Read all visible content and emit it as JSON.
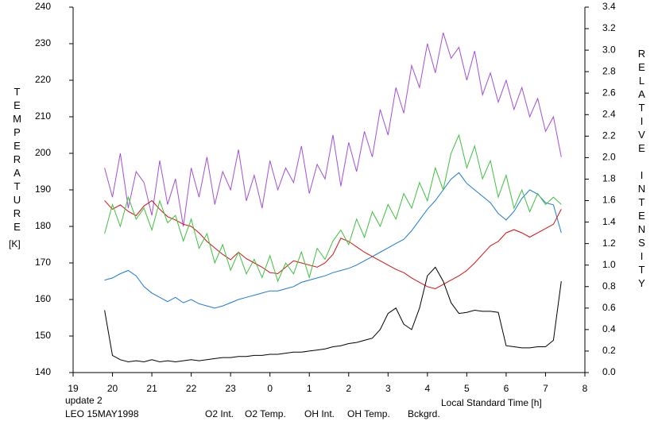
{
  "chart_data": {
    "type": "line",
    "annotations": [
      {
        "text": "update 2",
        "color": "#30c030"
      },
      {
        "text": "LEO 15MAY1998",
        "color": "#000000"
      }
    ],
    "x_label": "Local Standard Time [h]",
    "y_label": "TEMPERATURE",
    "y_unit": "[K]",
    "y2_label": "RELATIVE INTENSITY",
    "x": [
      19.8,
      20.0,
      20.2,
      20.4,
      20.6,
      20.8,
      21.0,
      21.2,
      21.4,
      21.6,
      21.8,
      22.0,
      22.2,
      22.4,
      22.6,
      22.8,
      23.0,
      23.2,
      23.4,
      23.6,
      23.8,
      24.0,
      24.2,
      24.4,
      24.6,
      24.8,
      25.0,
      25.2,
      25.4,
      25.6,
      25.8,
      26.0,
      26.2,
      26.4,
      26.6,
      26.8,
      27.0,
      27.2,
      27.4,
      27.6,
      27.8,
      28.0,
      28.2,
      28.4,
      28.6,
      28.8,
      29.0,
      29.2,
      29.4,
      29.6,
      29.8,
      30.0,
      30.2,
      30.4,
      30.6,
      30.8,
      31.0,
      31.2,
      31.4
    ],
    "xlim": [
      19,
      32
    ],
    "xticks": [
      19,
      20,
      21,
      22,
      23,
      {
        "value": 24,
        "label": "0"
      },
      {
        "value": 25,
        "label": "1"
      },
      {
        "value": 26,
        "label": "2"
      },
      {
        "value": 27,
        "label": "3"
      },
      {
        "value": 28,
        "label": "4"
      },
      {
        "value": 29,
        "label": "5"
      },
      {
        "value": 30,
        "label": "6"
      },
      {
        "value": 31,
        "label": "7"
      },
      {
        "value": 32,
        "label": "8"
      }
    ],
    "ylim": [
      140,
      240
    ],
    "yticks": [
      140,
      150,
      160,
      170,
      180,
      190,
      200,
      210,
      220,
      230,
      240
    ],
    "y2lim": [
      0,
      3.4
    ],
    "y2ticks": [
      {
        "value": 0,
        "label": "0.0"
      },
      0.2,
      0.4,
      0.6,
      0.8,
      {
        "value": 1,
        "label": "1.0"
      },
      1.2,
      1.4,
      1.6,
      1.8,
      {
        "value": 2,
        "label": "2.0"
      },
      2.2,
      2.4,
      2.6,
      2.8,
      {
        "value": 3,
        "label": "3.0"
      },
      3.2,
      3.4
    ],
    "grid": false,
    "series": [
      {
        "name": "O2 Int.",
        "color": "#1c7ad6",
        "axis": "y2",
        "values": [
          0.86,
          0.88,
          0.92,
          0.95,
          0.9,
          0.8,
          0.74,
          0.7,
          0.66,
          0.7,
          0.65,
          0.68,
          0.64,
          0.62,
          0.6,
          0.62,
          0.65,
          0.68,
          0.7,
          0.72,
          0.74,
          0.76,
          0.76,
          0.78,
          0.8,
          0.84,
          0.86,
          0.88,
          0.9,
          0.93,
          0.95,
          0.97,
          1.0,
          1.04,
          1.08,
          1.12,
          1.16,
          1.2,
          1.24,
          1.32,
          1.42,
          1.52,
          1.6,
          1.7,
          1.8,
          1.86,
          1.76,
          1.7,
          1.64,
          1.58,
          1.48,
          1.42,
          1.5,
          1.62,
          1.7,
          1.66,
          1.58,
          1.56,
          1.3
        ]
      },
      {
        "name": "O2 Temp.",
        "color": "#a050d8",
        "values": [
          196,
          188,
          200,
          185,
          195,
          192,
          183,
          198,
          186,
          193,
          180,
          196,
          188,
          199,
          186,
          195,
          190,
          201,
          187,
          194,
          185,
          198,
          190,
          196,
          192,
          202,
          189,
          197,
          193,
          205,
          191,
          203,
          195,
          206,
          199,
          212,
          205,
          218,
          211,
          224,
          218,
          230,
          222,
          233,
          226,
          229,
          220,
          228,
          216,
          222,
          214,
          220,
          212,
          218,
          210,
          215,
          206,
          210,
          199
        ]
      },
      {
        "name": "OH Int.",
        "color": "#d81010",
        "axis": "y2",
        "values": [
          1.6,
          1.52,
          1.56,
          1.5,
          1.46,
          1.55,
          1.6,
          1.52,
          1.45,
          1.42,
          1.38,
          1.36,
          1.3,
          1.22,
          1.16,
          1.1,
          1.05,
          1.12,
          1.06,
          1.02,
          0.98,
          0.93,
          0.92,
          0.98,
          1.04,
          1.02,
          1.0,
          0.98,
          1.02,
          1.1,
          1.25,
          1.22,
          1.17,
          1.12,
          1.08,
          1.04,
          1.0,
          0.96,
          0.93,
          0.88,
          0.84,
          0.8,
          0.78,
          0.82,
          0.86,
          0.9,
          0.95,
          1.02,
          1.1,
          1.18,
          1.22,
          1.3,
          1.33,
          1.3,
          1.26,
          1.3,
          1.34,
          1.38,
          1.52
        ]
      },
      {
        "name": "OH Temp.",
        "color": "#40c040",
        "values": [
          178,
          186,
          180,
          188,
          182,
          185,
          179,
          187,
          181,
          183,
          176,
          182,
          174,
          178,
          170,
          175,
          168,
          173,
          167,
          171,
          166,
          172,
          165,
          170,
          167,
          173,
          166,
          174,
          171,
          176,
          179,
          175,
          182,
          177,
          184,
          180,
          186,
          182,
          189,
          185,
          192,
          187,
          196,
          190,
          200,
          205,
          196,
          202,
          193,
          198,
          188,
          194,
          185,
          190,
          184,
          189,
          186,
          188,
          186
        ]
      },
      {
        "name": "Bckgrd.",
        "color": "#000000",
        "axis": "y2",
        "values": [
          0.58,
          0.16,
          0.12,
          0.1,
          0.11,
          0.1,
          0.12,
          0.1,
          0.11,
          0.1,
          0.11,
          0.12,
          0.11,
          0.12,
          0.13,
          0.14,
          0.14,
          0.15,
          0.15,
          0.16,
          0.16,
          0.17,
          0.17,
          0.18,
          0.19,
          0.19,
          0.2,
          0.21,
          0.22,
          0.24,
          0.25,
          0.27,
          0.28,
          0.3,
          0.32,
          0.4,
          0.55,
          0.6,
          0.45,
          0.4,
          0.6,
          0.9,
          0.98,
          0.85,
          0.65,
          0.55,
          0.56,
          0.58,
          0.57,
          0.57,
          0.56,
          0.25,
          0.24,
          0.23,
          0.23,
          0.24,
          0.24,
          0.3,
          0.85
        ]
      }
    ]
  }
}
